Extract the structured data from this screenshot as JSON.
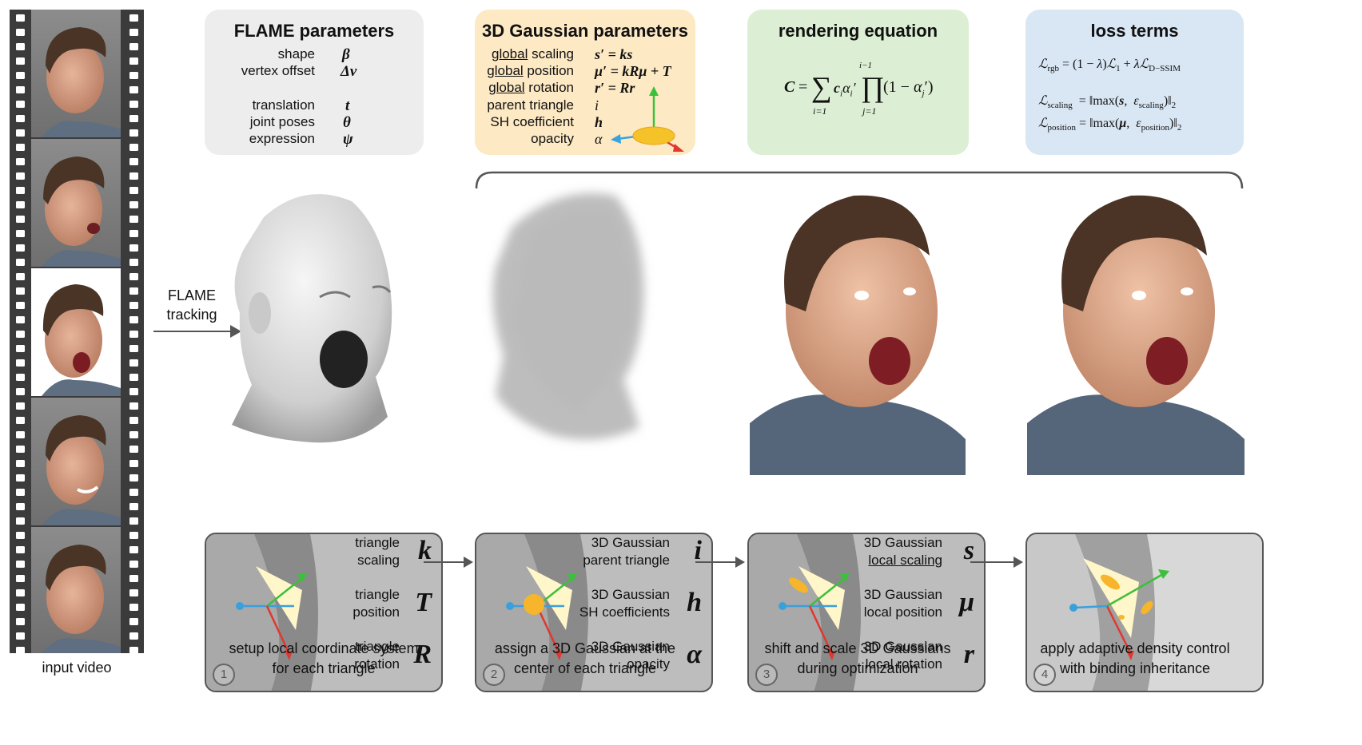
{
  "input_video_label": "input video",
  "flame_tracking": [
    "FLAME",
    "tracking"
  ],
  "panels": {
    "flame": {
      "title": "FLAME parameters",
      "rows": [
        {
          "label": "shape",
          "sym": "β"
        },
        {
          "label": "vertex offset",
          "sym": "Δv"
        },
        {
          "label": "translation",
          "sym": "t"
        },
        {
          "label": "joint poses",
          "sym": "θ"
        },
        {
          "label": "expression",
          "sym": "ψ"
        }
      ]
    },
    "gaussian": {
      "title": "3D Gaussian parameters",
      "rows": [
        {
          "u": "global",
          "label": " scaling",
          "expr": "s′ = ks"
        },
        {
          "u": "global",
          "label": " position",
          "expr": "μ′ = kRμ + T"
        },
        {
          "u": "global",
          "label": " rotation",
          "expr": "r′ = Rr"
        },
        {
          "u": "",
          "label": "parent triangle",
          "expr": "i"
        },
        {
          "u": "",
          "label": "SH coefficient",
          "expr": "h"
        },
        {
          "u": "",
          "label": "opacity",
          "expr": "α"
        }
      ]
    },
    "render": {
      "title": "rendering equation",
      "equation": "C = Σ_{i=1} c_i α′_i Π_{j=1}^{i−1} (1 − α′_j)"
    },
    "loss": {
      "title": "loss terms",
      "l1": "ℒrgb = (1 − λ)ℒ1 + λℒD−SSIM",
      "l2": "ℒscaling = ‖max(s, εscaling)‖2",
      "l3": "ℒposition = ‖max(μ, εposition)‖2"
    }
  },
  "steps": [
    {
      "num": "1",
      "items": [
        {
          "t1": "triangle",
          "t2": "scaling",
          "sym": "k"
        },
        {
          "t1": "triangle",
          "t2": "position",
          "sym": "T"
        },
        {
          "t1": "triangle",
          "t2": "rotation",
          "sym": "R"
        }
      ],
      "caption": [
        "setup local coordinate system",
        "for each triangle"
      ]
    },
    {
      "num": "2",
      "items": [
        {
          "t1": "3D Gaussian",
          "t2": "parent triangle",
          "sym": "i"
        },
        {
          "t1": "3D Gaussian",
          "t2": "SH coefficients",
          "sym": "h"
        },
        {
          "t1": "3D Gaussian",
          "t2": "opacity",
          "sym": "α"
        }
      ],
      "caption": [
        "assign a 3D Gaussian at the",
        "center of each triangle"
      ]
    },
    {
      "num": "3",
      "items": [
        {
          "t1": "3D Gaussian",
          "t2": "local scaling",
          "sym": "s"
        },
        {
          "t1": "3D Gaussian",
          "t2": "local position",
          "sym": "μ"
        },
        {
          "t1": "3D Gaussian",
          "t2": "local rotation",
          "sym": "r"
        }
      ],
      "caption": [
        "shift and scale 3D Gaussians",
        "during optimization"
      ]
    },
    {
      "num": "4",
      "items": [],
      "caption": [
        "apply adaptive density control",
        "with binding inheritance"
      ]
    }
  ],
  "colors": {
    "flame_bg": "#ededed",
    "gaussian_bg": "#fde9c4",
    "render_bg": "#dcefd4",
    "loss_bg": "#d9e6f4"
  }
}
